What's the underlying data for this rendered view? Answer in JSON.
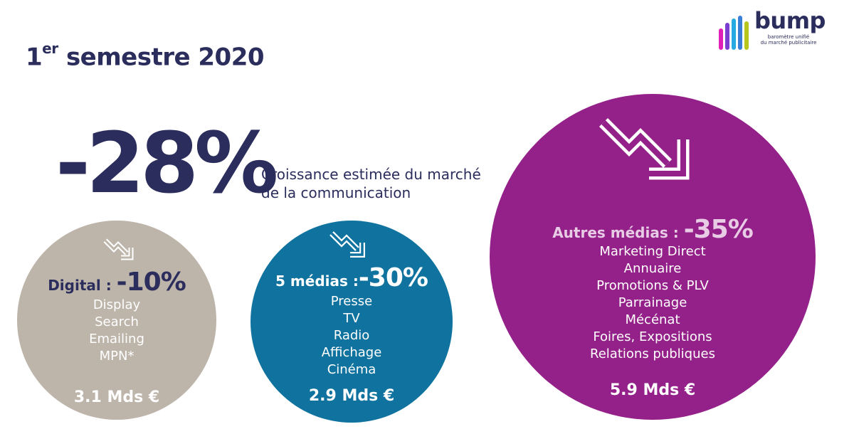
{
  "title": {
    "prefix": "1",
    "sup": "er",
    "rest": " semestre 2020"
  },
  "logo": {
    "brand": "bump",
    "tagline": [
      "baromètre unifié",
      "du marché publicitaire"
    ]
  },
  "headline": {
    "value": "-28%",
    "caption_lines": [
      "Croissance estimée du marché",
      "de la communication"
    ]
  },
  "circles": {
    "digital": {
      "label": "Digital : ",
      "pct": "-10%",
      "items": [
        "Display",
        "Search",
        "Emailing",
        "MPN*"
      ],
      "amount": "3.1 Mds €"
    },
    "five_media": {
      "label": "5 médias :",
      "pct": "-30%",
      "items": [
        "Presse",
        "TV",
        "Radio",
        "Affichage",
        "Cinéma"
      ],
      "amount": "2.9 Mds €"
    },
    "autres": {
      "label": "Autres médias : ",
      "pct": "-35%",
      "items": [
        "Marketing Direct",
        "Annuaire",
        "Promotions & PLV",
        "Parrainage",
        "Mécénat",
        "Foires, Expositions",
        "Relations publiques"
      ],
      "amount": "5.9 Mds €"
    }
  },
  "colors": {
    "navy": "#2b2d5c",
    "digital": "#bdb4aa",
    "five_media": "#10739f",
    "autres": "#942189",
    "logo_bars": [
      "#e020b8",
      "#7a3fd0",
      "#27a9e1",
      "#3a7fd6",
      "#b8c51a"
    ]
  },
  "icons": [
    "down-trend-arrow-icon"
  ]
}
